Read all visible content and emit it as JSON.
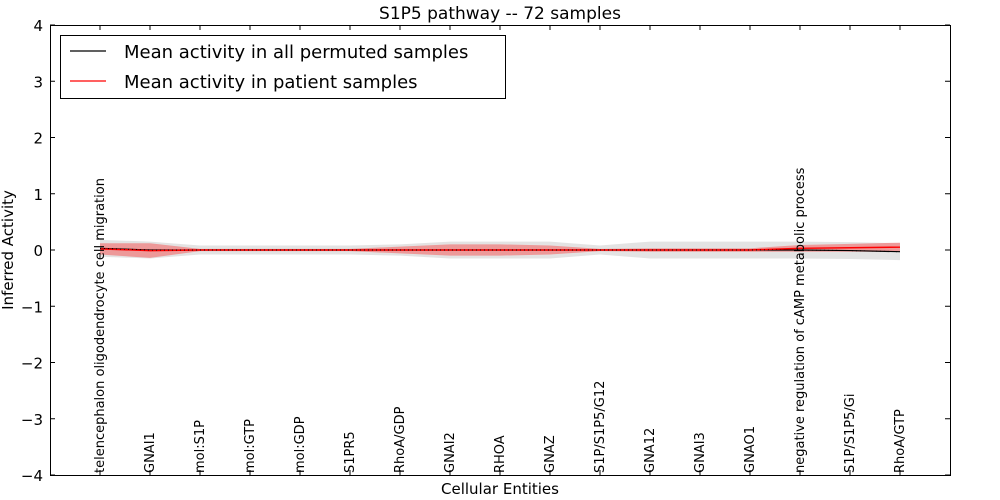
{
  "chart_data": {
    "type": "line",
    "title": "S1P5 pathway -- 72 samples",
    "xlabel": "Cellular Entities",
    "ylabel": "Inferred Activity",
    "ylim": [
      -4,
      4
    ],
    "yticks": [
      "4",
      "3",
      "2",
      "1",
      "0",
      "−1",
      "−2",
      "−3",
      "−4"
    ],
    "ytick_values": [
      4,
      3,
      2,
      1,
      0,
      -1,
      -2,
      -3,
      -4
    ],
    "legend_position": "top-left",
    "categories": [
      "telencephalon oligodendrocyte cell migration",
      "GNAI1",
      "mol:S1P",
      "mol:GTP",
      "mol:GDP",
      "S1PR5",
      "RhoA/GDP",
      "GNAI2",
      "RHOA",
      "GNAZ",
      "S1P/S1P5/G12",
      "GNA12",
      "GNAI3",
      "GNAO1",
      "negative regulation of cAMP metabolic process",
      "S1P/S1P5/Gi",
      "RhoA/GTP"
    ],
    "series": [
      {
        "name": "Mean activity in all permuted samples",
        "color": "#000000",
        "values": [
          0.03,
          0,
          0,
          0,
          0,
          0,
          0,
          0,
          0,
          0,
          0,
          0,
          0,
          0,
          0,
          -0.01,
          -0.03
        ],
        "std": [
          0.15,
          0.15,
          0.08,
          0.08,
          0.08,
          0.08,
          0.1,
          0.15,
          0.15,
          0.15,
          0.08,
          0.15,
          0.15,
          0.15,
          0.15,
          0.15,
          0.15
        ],
        "band_color": "#dcdcdc"
      },
      {
        "name": "Mean activity in patient samples",
        "color": "#ff0000",
        "values": [
          0.02,
          -0.01,
          0,
          0,
          0,
          0,
          0,
          0,
          0,
          0,
          0,
          0,
          0,
          0,
          0.03,
          0.04,
          0.05
        ],
        "std": [
          0.1,
          0.13,
          0.02,
          0.02,
          0.02,
          0.02,
          0.06,
          0.1,
          0.1,
          0.08,
          0.02,
          0.03,
          0.03,
          0.03,
          0.06,
          0.07,
          0.08
        ],
        "band_color": "#f08080"
      }
    ]
  }
}
